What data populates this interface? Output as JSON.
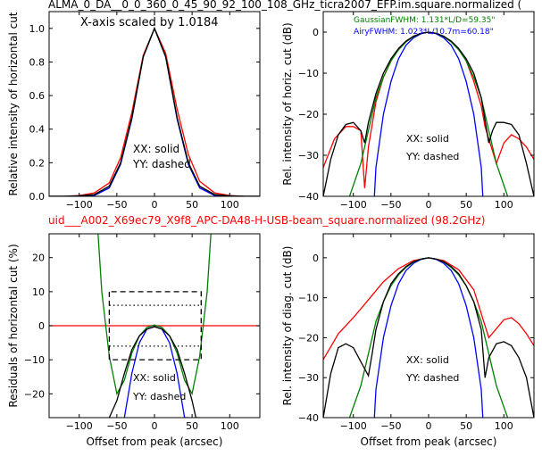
{
  "figure": {
    "title_top": "ALMA_0_DA__0_0_360_0_45_90_92_100_108_GHz_ticra2007_EFP.im.square.normalized (",
    "title_mid": "uid___A002_X69ec79_X9f8_APC-DA48-H-USB-beam_square.normalized (98.2GHz)",
    "title_mid_color": "#ff0000"
  },
  "colors": {
    "red": "#ff0000",
    "blue": "#0000ff",
    "green": "#008000",
    "black": "#000000"
  },
  "chart_data": [
    {
      "id": "top-left",
      "type": "line",
      "ylabel": "Relative intensity of horizontal cut",
      "xlabel": "",
      "xlim": [
        -140,
        140
      ],
      "ylim": [
        0,
        1.1
      ],
      "xticks": [
        -100,
        -50,
        0,
        50,
        100
      ],
      "yticks": [
        0.0,
        0.2,
        0.4,
        0.6,
        0.8,
        1.0
      ],
      "xtick_labels": [
        "−100",
        "−50",
        "0",
        "50",
        "100"
      ],
      "ytick_labels": [
        "0.0",
        "0.2",
        "0.4",
        "0.6",
        "0.8",
        "1.0"
      ],
      "annotations": [
        {
          "text": "X-axis scaled by 1.0184"
        },
        {
          "text": "XX: solid"
        },
        {
          "text": "YY: dashed"
        }
      ],
      "series": [
        {
          "color": "#ff0000",
          "style": "solid",
          "x": [
            -140,
            -120,
            -100,
            -80,
            -60,
            -45,
            -30,
            -15,
            0,
            15,
            30,
            45,
            60,
            80,
            100,
            120,
            140
          ],
          "y": [
            0.0,
            0.0,
            0.005,
            0.02,
            0.08,
            0.23,
            0.5,
            0.84,
            1.0,
            0.85,
            0.52,
            0.25,
            0.09,
            0.02,
            0.005,
            0.0,
            0.0
          ]
        },
        {
          "color": "#0000ff",
          "style": "solid",
          "x": [
            -140,
            -120,
            -100,
            -80,
            -60,
            -45,
            -30,
            -15,
            0,
            15,
            30,
            45,
            60,
            80,
            100,
            120,
            140
          ],
          "y": [
            0.0,
            0.0,
            0.0,
            0.005,
            0.05,
            0.19,
            0.46,
            0.83,
            1.0,
            0.83,
            0.46,
            0.19,
            0.05,
            0.005,
            0.0,
            0.0,
            0.0
          ]
        },
        {
          "color": "#008000",
          "style": "solid",
          "x": [
            -140,
            -120,
            -100,
            -80,
            -60,
            -45,
            -30,
            -15,
            0,
            15,
            30,
            45,
            60,
            80,
            100,
            120,
            140
          ],
          "y": [
            0.0,
            0.0,
            0.002,
            0.01,
            0.06,
            0.2,
            0.47,
            0.83,
            1.0,
            0.83,
            0.47,
            0.2,
            0.06,
            0.01,
            0.002,
            0.0,
            0.0
          ]
        },
        {
          "color": "#000000",
          "style": "solid",
          "x": [
            -140,
            -120,
            -100,
            -80,
            -60,
            -45,
            -30,
            -15,
            0,
            15,
            30,
            45,
            60,
            80,
            100,
            120,
            140
          ],
          "y": [
            0.0,
            0.0,
            0.003,
            0.01,
            0.06,
            0.2,
            0.47,
            0.83,
            1.0,
            0.83,
            0.47,
            0.2,
            0.06,
            0.01,
            0.003,
            0.0,
            0.0
          ]
        }
      ]
    },
    {
      "id": "top-right",
      "type": "line",
      "ylabel": "Rel. intensity of horiz. cut (dB)",
      "xlabel": "",
      "xlim": [
        -140,
        140
      ],
      "ylim": [
        -40,
        5
      ],
      "xticks": [
        -100,
        -50,
        0,
        50,
        100
      ],
      "yticks": [
        -40,
        -30,
        -20,
        -10,
        0
      ],
      "xtick_labels": [
        "−100",
        "−50",
        "0",
        "50",
        "100"
      ],
      "ytick_labels": [
        "−40",
        "−30",
        "−20",
        "−10",
        "0"
      ],
      "annotations": [
        {
          "text": "GaussianFWHM: 1.131*L/D=59.35\"",
          "color": "#008000"
        },
        {
          "text": "AiryFWHM: 1.023*L/10.7m=60.18\"",
          "color": "#0000ff"
        },
        {
          "text": "XX: solid"
        },
        {
          "text": "YY: dashed"
        }
      ],
      "series": [
        {
          "color": "#ff0000",
          "style": "solid",
          "x": [
            -140,
            -125,
            -110,
            -100,
            -90,
            -85,
            -80,
            -70,
            -60,
            -50,
            -40,
            -30,
            -20,
            -10,
            0,
            10,
            20,
            30,
            40,
            50,
            60,
            70,
            75,
            80,
            90,
            100,
            110,
            120,
            130,
            140
          ],
          "y": [
            -33,
            -26,
            -23,
            -23,
            -24,
            -38,
            -28,
            -17,
            -11,
            -7,
            -4,
            -2.2,
            -1,
            -0.3,
            0,
            -0.3,
            -1,
            -2.2,
            -4,
            -7,
            -12,
            -18,
            -23,
            -26,
            -32,
            -27,
            -25,
            -26,
            -28,
            -31
          ]
        },
        {
          "color": "#0000ff",
          "style": "solid",
          "x": [
            -72,
            -70,
            -60,
            -50,
            -40,
            -30,
            -20,
            -10,
            0,
            10,
            20,
            30,
            40,
            50,
            60,
            70,
            72
          ],
          "y": [
            -40,
            -33,
            -20,
            -12,
            -6.5,
            -3.2,
            -1.4,
            -0.4,
            0,
            -0.4,
            -1.4,
            -3.2,
            -6.5,
            -12,
            -20,
            -33,
            -40
          ]
        },
        {
          "color": "#008000",
          "style": "solid",
          "x": [
            -105,
            -90,
            -80,
            -70,
            -60,
            -50,
            -40,
            -30,
            -20,
            -10,
            0,
            10,
            20,
            30,
            40,
            50,
            60,
            70,
            80,
            90,
            105
          ],
          "y": [
            -40,
            -32,
            -24,
            -16,
            -11,
            -7,
            -4.3,
            -2.4,
            -1.1,
            -0.3,
            0,
            -0.3,
            -1.1,
            -2.4,
            -4.3,
            -7,
            -11,
            -16,
            -24,
            -32,
            -40
          ]
        },
        {
          "color": "#000000",
          "style": "solid",
          "x": [
            -140,
            -130,
            -120,
            -110,
            -100,
            -90,
            -85,
            -80,
            -70,
            -60,
            -50,
            -40,
            -30,
            -20,
            -10,
            0,
            10,
            20,
            30,
            40,
            50,
            60,
            70,
            80,
            85,
            90,
            100,
            110,
            120,
            130,
            140
          ],
          "y": [
            -40,
            -31,
            -25,
            -22.5,
            -22,
            -24,
            -27,
            -22,
            -15,
            -10,
            -6.5,
            -4,
            -2.2,
            -1,
            -0.3,
            0,
            -0.3,
            -1,
            -2.2,
            -4,
            -6.5,
            -10,
            -16,
            -27,
            -24,
            -22,
            -22,
            -22.5,
            -25,
            -32,
            -40
          ]
        }
      ]
    },
    {
      "id": "bottom-left",
      "type": "line",
      "ylabel": "Residuals of horizontal cut (%)",
      "xlabel": "Offset from peak (arcsec)",
      "xlim": [
        -140,
        140
      ],
      "ylim": [
        -27,
        27
      ],
      "xticks": [
        -100,
        -50,
        0,
        50,
        100
      ],
      "yticks": [
        -20,
        -10,
        0,
        10,
        20
      ],
      "xtick_labels": [
        "−100",
        "−50",
        "0",
        "50",
        "100"
      ],
      "ytick_labels": [
        "−20",
        "−10",
        "0",
        "10",
        "20"
      ],
      "annotations": [
        {
          "text": "XX: solid"
        },
        {
          "text": "YY: dashed"
        }
      ],
      "series": [
        {
          "color": "#ff0000",
          "style": "solid",
          "x": [
            -140,
            140
          ],
          "y": [
            0,
            0
          ]
        },
        {
          "color": "#008000",
          "style": "solid",
          "x": [
            -75,
            -70,
            -60,
            -50,
            -40,
            -30,
            -20,
            -10,
            0,
            10,
            20,
            30,
            40,
            50,
            60,
            70,
            75
          ],
          "y": [
            27,
            10,
            -9,
            -20,
            -16,
            -8,
            -3,
            -0.5,
            0.2,
            -0.5,
            -3,
            -8,
            -16,
            -20,
            -9,
            10,
            27
          ]
        },
        {
          "color": "#0000ff",
          "style": "solid",
          "x": [
            -40,
            -30,
            -20,
            -10,
            0,
            10,
            20,
            30,
            40,
            45
          ],
          "y": [
            -27,
            -14,
            -5,
            -1,
            -0.3,
            -1,
            -5,
            -14,
            -27,
            -27
          ]
        },
        {
          "color": "#000000",
          "style": "solid",
          "x": [
            -60,
            -50,
            -40,
            -30,
            -20,
            -10,
            0,
            10,
            20,
            30,
            40,
            50,
            55,
            60
          ],
          "y": [
            -27,
            -22,
            -14,
            -7,
            -3,
            -1,
            -0.3,
            -1,
            -3,
            -7,
            -14,
            -22,
            -27,
            -27
          ]
        },
        {
          "color": "#000000",
          "style": "dashed",
          "x": [
            -60,
            -60,
            62,
            62,
            -60
          ],
          "y": [
            10,
            -10,
            -10,
            10,
            10
          ]
        },
        {
          "color": "#000000",
          "style": "dotted",
          "x": [
            -60,
            62
          ],
          "y": [
            6,
            6
          ]
        },
        {
          "color": "#000000",
          "style": "dotted",
          "x": [
            -60,
            62
          ],
          "y": [
            -6,
            -6
          ]
        }
      ]
    },
    {
      "id": "bottom-right",
      "type": "line",
      "ylabel": "Rel. intensity of diag. cut (dB)",
      "xlabel": "Offset from peak (arcsec)",
      "xlim": [
        -140,
        140
      ],
      "ylim": [
        -40,
        6
      ],
      "xticks": [
        -100,
        -50,
        0,
        50,
        100
      ],
      "yticks": [
        -40,
        -30,
        -20,
        -10,
        0
      ],
      "xtick_labels": [
        "−100",
        "−50",
        "0",
        "50",
        "100"
      ],
      "ytick_labels": [
        "−40",
        "−30",
        "−20",
        "−10",
        "0"
      ],
      "annotations": [
        {
          "text": "XX: solid"
        },
        {
          "text": "YY: dashed"
        }
      ],
      "series": [
        {
          "color": "#ff0000",
          "style": "solid",
          "x": [
            -140,
            -120,
            -100,
            -80,
            -60,
            -40,
            -20,
            0,
            20,
            40,
            60,
            80,
            100,
            110,
            120,
            130,
            140
          ],
          "y": [
            -25.5,
            -19,
            -15,
            -10.5,
            -6,
            -2.7,
            -0.7,
            0,
            -0.7,
            -3,
            -8,
            -20,
            -15.5,
            -15,
            -16.5,
            -19,
            -22
          ]
        },
        {
          "color": "#0000ff",
          "style": "solid",
          "x": [
            -72,
            -70,
            -60,
            -50,
            -40,
            -30,
            -20,
            -10,
            0,
            10,
            20,
            30,
            40,
            50,
            60,
            70,
            72
          ],
          "y": [
            -40,
            -33,
            -20,
            -12,
            -6.5,
            -3.2,
            -1.4,
            -0.4,
            0,
            -0.4,
            -1.4,
            -3.2,
            -6.5,
            -12,
            -20,
            -33,
            -40
          ]
        },
        {
          "color": "#008000",
          "style": "solid",
          "x": [
            -105,
            -90,
            -80,
            -70,
            -60,
            -50,
            -40,
            -30,
            -20,
            -10,
            0,
            10,
            20,
            30,
            40,
            50,
            60,
            70,
            80,
            90,
            105
          ],
          "y": [
            -40,
            -32,
            -24,
            -16,
            -11,
            -7,
            -4.3,
            -2.4,
            -1.1,
            -0.3,
            0,
            -0.3,
            -1.1,
            -2.4,
            -4.3,
            -7,
            -11,
            -16,
            -24,
            -32,
            -40
          ]
        },
        {
          "color": "#000000",
          "style": "solid",
          "x": [
            -140,
            -130,
            -120,
            -110,
            -100,
            -90,
            -80,
            -75,
            -70,
            -60,
            -50,
            -40,
            -30,
            -20,
            -10,
            0,
            10,
            20,
            30,
            40,
            50,
            60,
            70,
            75,
            80,
            90,
            100,
            110,
            120,
            130,
            140
          ],
          "y": [
            -40,
            -29,
            -22.5,
            -21.5,
            -22.5,
            -26,
            -29.5,
            -24,
            -18,
            -11,
            -6.5,
            -4,
            -2.2,
            -1,
            -0.3,
            0,
            -0.3,
            -1,
            -2.2,
            -4,
            -7,
            -11,
            -18,
            -30,
            -25,
            -21.5,
            -21,
            -22,
            -25,
            -30,
            -40
          ]
        }
      ]
    }
  ]
}
